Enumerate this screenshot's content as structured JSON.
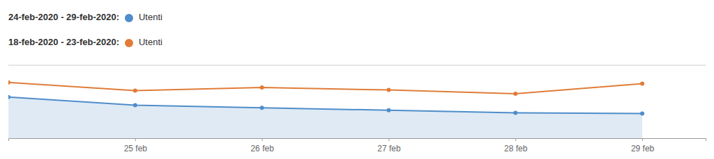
{
  "chart_data": {
    "type": "line",
    "x": [
      0,
      1,
      2,
      3,
      4,
      5
    ],
    "xlim": [
      0,
      5.5
    ],
    "xticks": [
      {
        "value": 1,
        "label": "25 feb"
      },
      {
        "value": 2,
        "label": "26 feb"
      },
      {
        "value": 3,
        "label": "27 feb"
      },
      {
        "value": 4,
        "label": "28 feb"
      },
      {
        "value": 5,
        "label": "29 feb"
      }
    ],
    "ylim": [
      30,
      145
    ],
    "tick_labels": "x",
    "grid": false,
    "marker": "circle",
    "series": [
      {
        "name": "Utenti",
        "period": "24-feb-2020 - 29-feb-2020:",
        "type": "area",
        "color": "#4e8dc9",
        "values": [
          95,
          82,
          78,
          74,
          70,
          69
        ]
      },
      {
        "name": "Utenti",
        "period": "18-feb-2020 - 23-feb-2020:",
        "type": "line",
        "color": "#e07c38",
        "values": [
          118,
          105,
          110,
          106,
          100,
          116
        ]
      }
    ]
  }
}
